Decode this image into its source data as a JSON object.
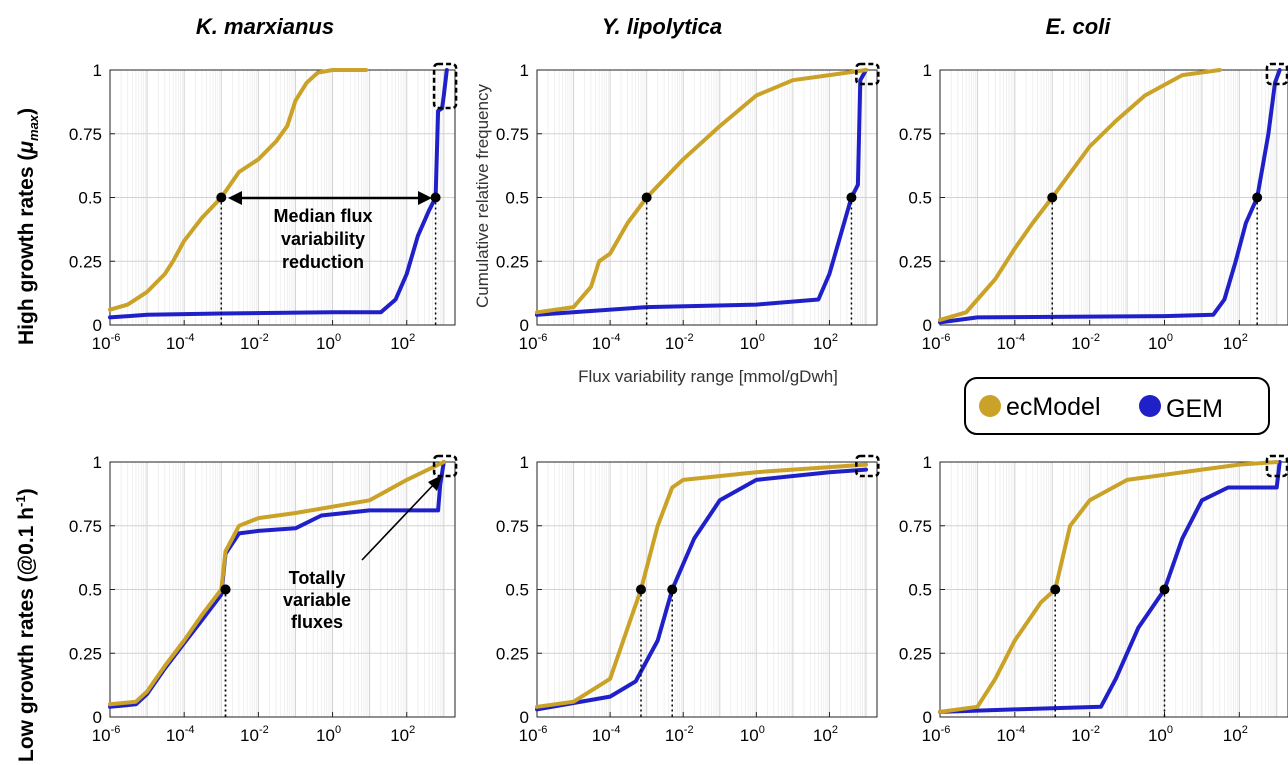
{
  "figure": {
    "column_titles": [
      "K. marxianus",
      "Y. lipolytica",
      "E. coli"
    ],
    "row_labels": {
      "top_prefix": "High growth rates (",
      "top_mu": "μ",
      "top_sub": "max",
      "top_suffix": ")",
      "bottom_prefix": "Low growth rates (@0.1 h",
      "bottom_sup": "-1",
      "bottom_suffix": ")"
    },
    "ylabel": "Cumulative relative frequency",
    "xlabel": "Flux variability range [mmol/gDwh]",
    "legend": {
      "items": [
        {
          "label": "ecModel",
          "color": "#C9A227"
        },
        {
          "label": "GEM",
          "color": "#2020C8"
        }
      ]
    },
    "annotations": {
      "median": [
        "Median flux",
        "variability",
        "reduction"
      ],
      "totally": [
        "Totally",
        "variable",
        "fluxes"
      ]
    },
    "x_ticks": [
      {
        "base": "10",
        "exp": "-6"
      },
      {
        "base": "10",
        "exp": "-4"
      },
      {
        "base": "10",
        "exp": "-2"
      },
      {
        "base": "10",
        "exp": "0"
      },
      {
        "base": "10",
        "exp": "2"
      }
    ],
    "y_ticks": [
      "0",
      "0.25",
      "0.5",
      "0.75",
      "1"
    ]
  },
  "chart_data": [
    {
      "type": "line",
      "title": "K. marxianus",
      "row": "High growth rates (μmax)",
      "xscale": "log",
      "xlim": [
        1e-06,
        2000
      ],
      "ylim": [
        0,
        1
      ],
      "series": [
        {
          "name": "ecModel",
          "color": "#C9A227",
          "points": [
            [
              1e-06,
              0.06
            ],
            [
              3e-06,
              0.08
            ],
            [
              1e-05,
              0.13
            ],
            [
              3e-05,
              0.2
            ],
            [
              5e-05,
              0.25
            ],
            [
              0.0001,
              0.33
            ],
            [
              0.0003,
              0.42
            ],
            [
              0.001,
              0.5
            ],
            [
              0.003,
              0.6
            ],
            [
              0.01,
              0.65
            ],
            [
              0.03,
              0.72
            ],
            [
              0.06,
              0.78
            ],
            [
              0.1,
              0.88
            ],
            [
              0.2,
              0.95
            ],
            [
              0.4,
              0.99
            ],
            [
              1,
              1
            ],
            [
              8,
              1
            ]
          ],
          "median": 0.001
        },
        {
          "name": "GEM",
          "color": "#2020C8",
          "points": [
            [
              1e-06,
              0.03
            ],
            [
              1e-05,
              0.04
            ],
            [
              0.001,
              0.045
            ],
            [
              1,
              0.05
            ],
            [
              20,
              0.05
            ],
            [
              50,
              0.1
            ],
            [
              100,
              0.2
            ],
            [
              200,
              0.35
            ],
            [
              400,
              0.45
            ],
            [
              600,
              0.5
            ],
            [
              700,
              0.84
            ],
            [
              900,
              0.85
            ],
            [
              1000,
              0.9
            ],
            [
              1200,
              1
            ]
          ],
          "median": 600
        }
      ]
    },
    {
      "type": "line",
      "title": "Y. lipolytica",
      "row": "High growth rates (μmax)",
      "xscale": "log",
      "xlim": [
        1e-06,
        2000
      ],
      "ylim": [
        0,
        1
      ],
      "series": [
        {
          "name": "ecModel",
          "color": "#C9A227",
          "points": [
            [
              1e-06,
              0.05
            ],
            [
              1e-05,
              0.07
            ],
            [
              3e-05,
              0.15
            ],
            [
              5e-05,
              0.25
            ],
            [
              0.0001,
              0.28
            ],
            [
              0.0003,
              0.4
            ],
            [
              0.001,
              0.5
            ],
            [
              0.01,
              0.65
            ],
            [
              0.1,
              0.78
            ],
            [
              1,
              0.9
            ],
            [
              10,
              0.96
            ],
            [
              100,
              0.98
            ],
            [
              1000,
              1
            ]
          ],
          "median": 0.001
        },
        {
          "name": "GEM",
          "color": "#2020C8",
          "points": [
            [
              1e-06,
              0.04
            ],
            [
              0.001,
              0.07
            ],
            [
              1,
              0.08
            ],
            [
              50,
              0.1
            ],
            [
              100,
              0.2
            ],
            [
              200,
              0.35
            ],
            [
              400,
              0.5
            ],
            [
              600,
              0.55
            ],
            [
              700,
              0.96
            ],
            [
              1000,
              1
            ]
          ],
          "median": 400
        }
      ]
    },
    {
      "type": "line",
      "title": "E. coli",
      "row": "High growth rates (μmax)",
      "xscale": "log",
      "xlim": [
        1e-06,
        2000
      ],
      "ylim": [
        0,
        1
      ],
      "series": [
        {
          "name": "ecModel",
          "color": "#C9A227",
          "points": [
            [
              1e-06,
              0.02
            ],
            [
              5e-06,
              0.05
            ],
            [
              1e-05,
              0.1
            ],
            [
              3e-05,
              0.18
            ],
            [
              0.0001,
              0.3
            ],
            [
              0.0003,
              0.4
            ],
            [
              0.001,
              0.5
            ],
            [
              0.01,
              0.7
            ],
            [
              0.05,
              0.8
            ],
            [
              0.3,
              0.9
            ],
            [
              3,
              0.98
            ],
            [
              30,
              1
            ]
          ],
          "median": 0.001
        },
        {
          "name": "GEM",
          "color": "#2020C8",
          "points": [
            [
              1e-06,
              0.01
            ],
            [
              1e-05,
              0.03
            ],
            [
              1,
              0.035
            ],
            [
              20,
              0.04
            ],
            [
              40,
              0.1
            ],
            [
              80,
              0.25
            ],
            [
              150,
              0.4
            ],
            [
              300,
              0.5
            ],
            [
              600,
              0.75
            ],
            [
              900,
              0.95
            ],
            [
              1200,
              1
            ]
          ],
          "median": 300
        }
      ]
    },
    {
      "type": "line",
      "title": "K. marxianus",
      "row": "Low growth rates (@0.1 h-1)",
      "xscale": "log",
      "xlim": [
        1e-06,
        2000
      ],
      "ylim": [
        0,
        1
      ],
      "series": [
        {
          "name": "ecModel",
          "color": "#C9A227",
          "points": [
            [
              1e-06,
              0.05
            ],
            [
              5e-06,
              0.06
            ],
            [
              1e-05,
              0.1
            ],
            [
              3e-05,
              0.2
            ],
            [
              0.0001,
              0.3
            ],
            [
              0.0003,
              0.4
            ],
            [
              0.001,
              0.5
            ],
            [
              0.0013,
              0.65
            ],
            [
              0.003,
              0.75
            ],
            [
              0.01,
              0.78
            ],
            [
              0.1,
              0.8
            ],
            [
              10,
              0.85
            ],
            [
              100,
              0.93
            ],
            [
              1000,
              1
            ]
          ],
          "median": 0.0013
        },
        {
          "name": "GEM",
          "color": "#2020C8",
          "points": [
            [
              1e-06,
              0.04
            ],
            [
              5e-06,
              0.05
            ],
            [
              1e-05,
              0.09
            ],
            [
              3e-05,
              0.19
            ],
            [
              0.0001,
              0.29
            ],
            [
              0.0003,
              0.38
            ],
            [
              0.001,
              0.48
            ],
            [
              0.0013,
              0.64
            ],
            [
              0.003,
              0.72
            ],
            [
              0.01,
              0.73
            ],
            [
              0.1,
              0.74
            ],
            [
              0.5,
              0.79
            ],
            [
              10,
              0.81
            ],
            [
              700,
              0.81
            ],
            [
              800,
              0.91
            ],
            [
              1000,
              1
            ]
          ],
          "median": 0.0013
        }
      ]
    },
    {
      "type": "line",
      "title": "Y. lipolytica",
      "row": "Low growth rates (@0.1 h-1)",
      "xscale": "log",
      "xlim": [
        1e-06,
        2000
      ],
      "ylim": [
        0,
        1
      ],
      "series": [
        {
          "name": "ecModel",
          "color": "#C9A227",
          "points": [
            [
              1e-06,
              0.04
            ],
            [
              1e-05,
              0.06
            ],
            [
              0.0001,
              0.15
            ],
            [
              0.0004,
              0.4
            ],
            [
              0.0007,
              0.5
            ],
            [
              0.002,
              0.75
            ],
            [
              0.005,
              0.9
            ],
            [
              0.01,
              0.93
            ],
            [
              1,
              0.96
            ],
            [
              1000,
              0.99
            ]
          ],
          "median": 0.0007
        },
        {
          "name": "GEM",
          "color": "#2020C8",
          "points": [
            [
              1e-06,
              0.03
            ],
            [
              0.0001,
              0.08
            ],
            [
              0.0005,
              0.14
            ],
            [
              0.002,
              0.3
            ],
            [
              0.005,
              0.5
            ],
            [
              0.02,
              0.7
            ],
            [
              0.1,
              0.85
            ],
            [
              1,
              0.93
            ],
            [
              100,
              0.96
            ],
            [
              1000,
              0.97
            ]
          ],
          "median": 0.005
        }
      ]
    },
    {
      "type": "line",
      "title": "E. coli",
      "row": "Low growth rates (@0.1 h-1)",
      "xscale": "log",
      "xlim": [
        1e-06,
        2000
      ],
      "ylim": [
        0,
        1
      ],
      "series": [
        {
          "name": "ecModel",
          "color": "#C9A227",
          "points": [
            [
              1e-06,
              0.02
            ],
            [
              1e-05,
              0.04
            ],
            [
              3e-05,
              0.15
            ],
            [
              0.0001,
              0.3
            ],
            [
              0.0005,
              0.45
            ],
            [
              0.0012,
              0.5
            ],
            [
              0.003,
              0.75
            ],
            [
              0.01,
              0.85
            ],
            [
              0.1,
              0.93
            ],
            [
              10,
              0.97
            ],
            [
              100,
              0.99
            ],
            [
              1000,
              1
            ]
          ],
          "median": 0.0012
        },
        {
          "name": "GEM",
          "color": "#2020C8",
          "points": [
            [
              1e-06,
              0.02
            ],
            [
              0.0001,
              0.03
            ],
            [
              0.02,
              0.04
            ],
            [
              0.05,
              0.15
            ],
            [
              0.2,
              0.35
            ],
            [
              1,
              0.5
            ],
            [
              3,
              0.7
            ],
            [
              10,
              0.85
            ],
            [
              50,
              0.9
            ],
            [
              1000,
              0.9
            ],
            [
              1200,
              1
            ]
          ],
          "median": 1
        }
      ]
    }
  ]
}
